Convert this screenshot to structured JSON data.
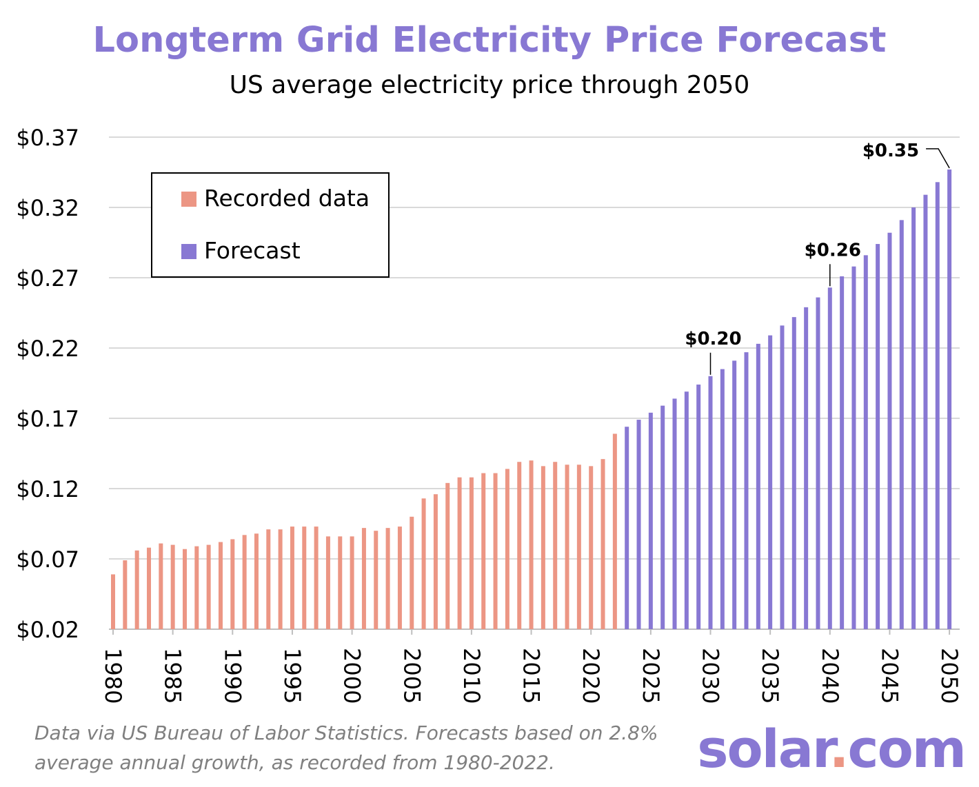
{
  "chart_data": {
    "type": "bar",
    "title": "Longterm Grid Electricity Price Forecast",
    "subtitle": "US average electricity price through 2050",
    "ylim": [
      0.02,
      0.37
    ],
    "yticks": [
      {
        "value": 0.37,
        "label": "$0.37"
      },
      {
        "value": 0.32,
        "label": "$0.32"
      },
      {
        "value": 0.27,
        "label": "$0.27"
      },
      {
        "value": 0.22,
        "label": "$0.22"
      },
      {
        "value": 0.17,
        "label": "$0.17"
      },
      {
        "value": 0.12,
        "label": "$0.12"
      },
      {
        "value": 0.07,
        "label": "$0.07"
      },
      {
        "value": 0.02,
        "label": "$0.02"
      }
    ],
    "xticks": [
      "1980",
      "1985",
      "1990",
      "1995",
      "2000",
      "2005",
      "2010",
      "2015",
      "2020",
      "2025",
      "2030",
      "2035",
      "2040",
      "2045",
      "2050"
    ],
    "grid": true,
    "legend_position": "top-left",
    "series": [
      {
        "name": "Recorded data",
        "color": "#ec9684",
        "x": [
          1980,
          1981,
          1982,
          1983,
          1984,
          1985,
          1986,
          1987,
          1988,
          1989,
          1990,
          1991,
          1992,
          1993,
          1994,
          1995,
          1996,
          1997,
          1998,
          1999,
          2000,
          2001,
          2002,
          2003,
          2004,
          2005,
          2006,
          2007,
          2008,
          2009,
          2010,
          2011,
          2012,
          2013,
          2014,
          2015,
          2016,
          2017,
          2018,
          2019,
          2020,
          2021,
          2022
        ],
        "values": [
          0.059,
          0.069,
          0.076,
          0.078,
          0.081,
          0.08,
          0.077,
          0.079,
          0.08,
          0.082,
          0.084,
          0.087,
          0.088,
          0.091,
          0.091,
          0.093,
          0.093,
          0.093,
          0.086,
          0.086,
          0.086,
          0.092,
          0.09,
          0.092,
          0.093,
          0.1,
          0.113,
          0.116,
          0.124,
          0.128,
          0.128,
          0.131,
          0.131,
          0.134,
          0.139,
          0.14,
          0.136,
          0.139,
          0.137,
          0.137,
          0.136,
          0.141,
          0.159
        ]
      },
      {
        "name": "Forecast",
        "color": "#8878d3",
        "x": [
          2023,
          2024,
          2025,
          2026,
          2027,
          2028,
          2029,
          2030,
          2031,
          2032,
          2033,
          2034,
          2035,
          2036,
          2037,
          2038,
          2039,
          2040,
          2041,
          2042,
          2043,
          2044,
          2045,
          2046,
          2047,
          2048,
          2049,
          2050
        ],
        "values": [
          0.164,
          0.169,
          0.174,
          0.179,
          0.184,
          0.189,
          0.194,
          0.2,
          0.205,
          0.211,
          0.217,
          0.223,
          0.229,
          0.236,
          0.242,
          0.249,
          0.256,
          0.263,
          0.271,
          0.278,
          0.286,
          0.294,
          0.302,
          0.311,
          0.32,
          0.329,
          0.338,
          0.347
        ]
      }
    ],
    "annotations": [
      {
        "x": 2030,
        "label": "$0.20"
      },
      {
        "x": 2040,
        "label": "$0.26"
      },
      {
        "x": 2050,
        "label": "$0.35"
      }
    ]
  },
  "footer": {
    "line1": "Data via US Bureau of Labor Statistics. Forecasts based on 2.8%",
    "line2": "average annual growth, as recorded from 1980-2022."
  },
  "brand": {
    "name_part1": "solar",
    "dot": ".",
    "name_part2": "com",
    "color": "#8878d3",
    "dot_color": "#ec9684"
  },
  "colors": {
    "title": "#8878d3",
    "grid": "#d9d9d9",
    "footer": "#7f7f7f"
  }
}
